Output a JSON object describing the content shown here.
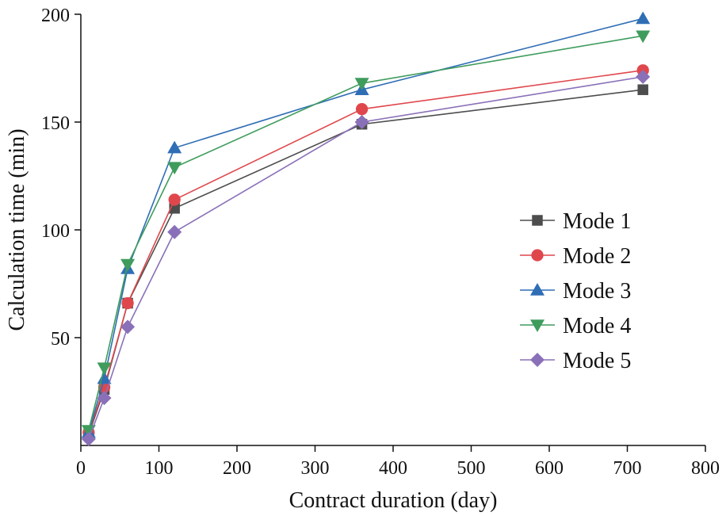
{
  "chart_data": {
    "type": "line",
    "xlabel": "Contract duration (day)",
    "ylabel": "Calculation time (min)",
    "xlim": [
      0,
      800
    ],
    "ylim": [
      0,
      200
    ],
    "xticks": [
      0,
      100,
      200,
      300,
      400,
      500,
      600,
      700,
      800
    ],
    "yticks": [
      50,
      100,
      150,
      200
    ],
    "grid": false,
    "legend_position": "right-center",
    "x": [
      10,
      30,
      60,
      120,
      360,
      720
    ],
    "series": [
      {
        "name": "Mode 1",
        "values": [
          5,
          26,
          66,
          110,
          149,
          165
        ],
        "color": "#4d4d4d",
        "marker": "square"
      },
      {
        "name": "Mode 2",
        "values": [
          6,
          27,
          66,
          114,
          156,
          174
        ],
        "color": "#e0474c",
        "marker": "circle"
      },
      {
        "name": "Mode 3",
        "values": [
          6,
          31,
          82,
          138,
          165,
          198
        ],
        "color": "#2f6eb5",
        "marker": "triangle-up"
      },
      {
        "name": "Mode 4",
        "values": [
          7,
          36,
          84,
          129,
          168,
          190
        ],
        "color": "#3f9c5d",
        "marker": "triangle-down"
      },
      {
        "name": "Mode 5",
        "values": [
          3,
          22,
          55,
          99,
          150,
          171
        ],
        "color": "#8a70b8",
        "marker": "diamond"
      }
    ]
  }
}
